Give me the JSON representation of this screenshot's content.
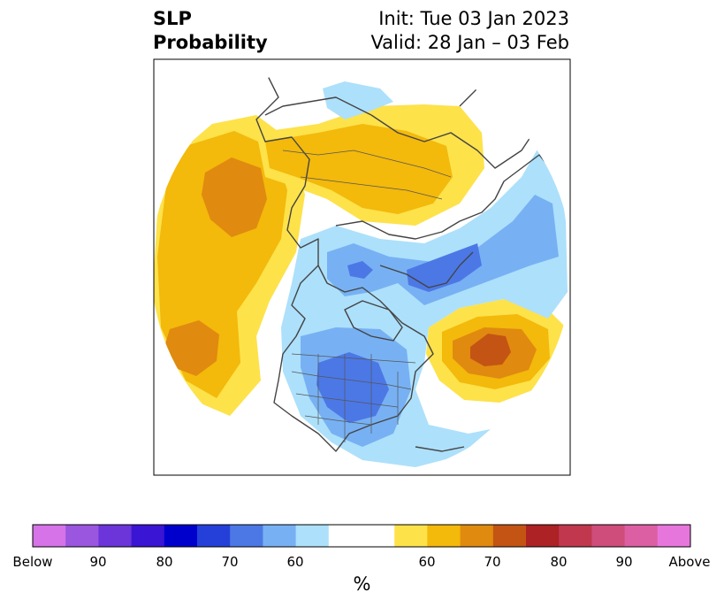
{
  "header": {
    "title_line1": "SLP",
    "title_line2": "Probability",
    "init_text": "Init: Tue 03 Jan 2023",
    "valid_text": "Valid: 28 Jan – 03 Feb"
  },
  "colorbar": {
    "unit": "%",
    "colors": [
      "#d673e8",
      "#9b56e0",
      "#6b35d9",
      "#3a15d4",
      "#0000cc",
      "#2540d9",
      "#4c78e6",
      "#77b1f3",
      "#ade0fb",
      "#ffffff",
      "#ffffff",
      "#fde24a",
      "#f3b90b",
      "#e08a0f",
      "#c45414",
      "#ad2225",
      "#c0374e",
      "#ce4d7b",
      "#dc5fa3",
      "#e776dc"
    ],
    "tick_labels": [
      "Below",
      "90",
      "80",
      "70",
      "60",
      "60",
      "70",
      "80",
      "90",
      "Above"
    ]
  },
  "map": {
    "colors": {
      "below_60": "#ade0fb",
      "below_70": "#77b1f3",
      "below_80": "#4c78e6",
      "above_60": "#fde24a",
      "above_70": "#f3b90b",
      "above_80": "#e08a0f",
      "above_90": "#c45414",
      "coast": "#444444",
      "frame": "#000000"
    }
  }
}
